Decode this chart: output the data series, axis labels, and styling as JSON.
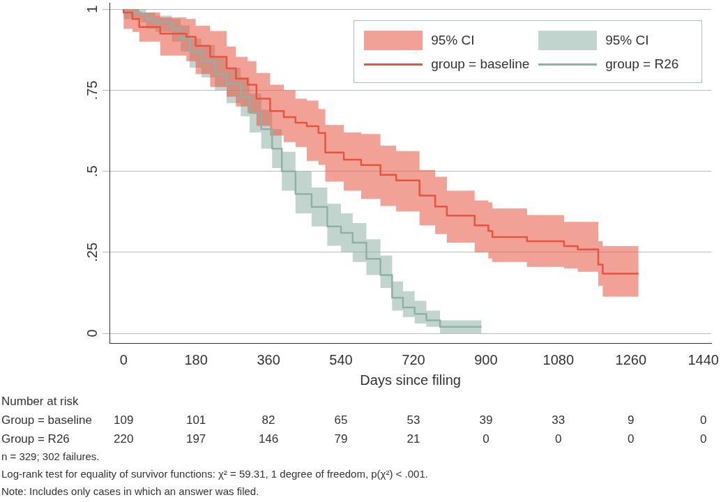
{
  "chart_data": {
    "type": "step",
    "xlabel": "Days since filing",
    "legend": "top right",
    "legend_title": "95% CI",
    "grid": "y",
    "xlim": [
      -35,
      1460
    ],
    "xticks": [
      0,
      180,
      360,
      540,
      720,
      900,
      1080,
      1260,
      1440
    ],
    "ylim": [
      -0.03,
      1.02
    ],
    "yticks": [
      0,
      {
        "value": 0.25,
        "label": ".25"
      },
      {
        "value": 0.5,
        "label": ".5"
      },
      {
        "value": 0.75,
        "label": ".75"
      },
      1
    ],
    "series": [
      {
        "name": "group = baseline",
        "color": "#e8533f",
        "x": [
          0,
          22,
          39,
          91,
          156,
          179,
          215,
          256,
          279,
          308,
          330,
          364,
          398,
          427,
          455,
          484,
          501,
          547,
          590,
          638,
          677,
          735,
          774,
          803,
          872,
          906,
          916,
          1002,
          1094,
          1128,
          1179,
          1190,
          1231,
          1279
        ],
        "values": [
          1,
          0.99,
          0.97,
          0.945,
          0.925,
          0.915,
          0.887,
          0.853,
          0.818,
          0.786,
          0.767,
          0.724,
          0.686,
          0.667,
          0.65,
          0.639,
          0.618,
          0.558,
          0.536,
          0.519,
          0.489,
          0.472,
          0.425,
          0.391,
          0.363,
          0.333,
          0.316,
          0.297,
          0.284,
          0.269,
          0.259,
          0.212,
          0.184,
          0.184
        ],
        "lower": [
          1,
          0.94,
          0.93,
          0.9,
          0.857,
          0.84,
          0.8,
          0.76,
          0.73,
          0.7,
          0.68,
          0.64,
          0.61,
          0.59,
          0.575,
          0.532,
          0.52,
          0.468,
          0.44,
          0.415,
          0.393,
          0.376,
          0.333,
          0.306,
          0.28,
          0.25,
          0.231,
          0.22,
          0.205,
          0.2,
          0.19,
          0.147,
          0.113,
          0.113
        ],
        "upper": [
          1,
          1,
          1,
          0.99,
          0.975,
          0.97,
          0.949,
          0.933,
          0.885,
          0.853,
          0.84,
          0.803,
          0.767,
          0.75,
          0.724,
          0.718,
          0.692,
          0.643,
          0.62,
          0.615,
          0.579,
          0.562,
          0.504,
          0.483,
          0.44,
          0.41,
          0.404,
          0.385,
          0.365,
          0.344,
          0.344,
          0.284,
          0.269,
          0.269
        ]
      },
      {
        "name": "group = R26",
        "color": "#8fb0a6",
        "x": [
          0,
          44,
          56,
          79,
          120,
          142,
          164,
          193,
          227,
          256,
          291,
          313,
          342,
          369,
          393,
          427,
          467,
          506,
          540,
          569,
          603,
          638,
          667,
          694,
          723,
          752,
          786,
          797,
          889
        ],
        "values": [
          1,
          0.99,
          0.985,
          0.97,
          0.96,
          0.94,
          0.91,
          0.87,
          0.84,
          0.8,
          0.77,
          0.73,
          0.68,
          0.63,
          0.57,
          0.5,
          0.43,
          0.39,
          0.33,
          0.31,
          0.28,
          0.23,
          0.18,
          0.11,
          0.08,
          0.06,
          0.04,
          0.02,
          0.02
        ],
        "lower": [
          1,
          0.97,
          0.96,
          0.94,
          0.93,
          0.9,
          0.87,
          0.82,
          0.79,
          0.75,
          0.71,
          0.67,
          0.62,
          0.57,
          0.51,
          0.44,
          0.37,
          0.33,
          0.27,
          0.25,
          0.22,
          0.18,
          0.14,
          0.07,
          0.05,
          0.03,
          0.02,
          0,
          0
        ],
        "upper": [
          1,
          1,
          1,
          0.99,
          0.98,
          0.97,
          0.95,
          0.91,
          0.89,
          0.85,
          0.82,
          0.79,
          0.74,
          0.69,
          0.63,
          0.56,
          0.5,
          0.45,
          0.4,
          0.37,
          0.34,
          0.29,
          0.24,
          0.16,
          0.13,
          0.1,
          0.07,
          0.04,
          0.04
        ]
      }
    ],
    "annotations": [
      "Number at risk",
      "Group = baseline",
      "109",
      "101",
      "82",
      "65",
      "53",
      "39",
      "33",
      "9",
      "0",
      "Group = R26",
      "220",
      "197",
      "146",
      "79",
      "21",
      "0",
      "0",
      "0",
      "0",
      "n = 329; 302 failures.",
      "Log-rank test for equality of survivor functions: χ² = 59.31, 1 degree of freedom, p(χ²) < .001.",
      "Note: Includes only cases in which an answer was filed."
    ]
  }
}
